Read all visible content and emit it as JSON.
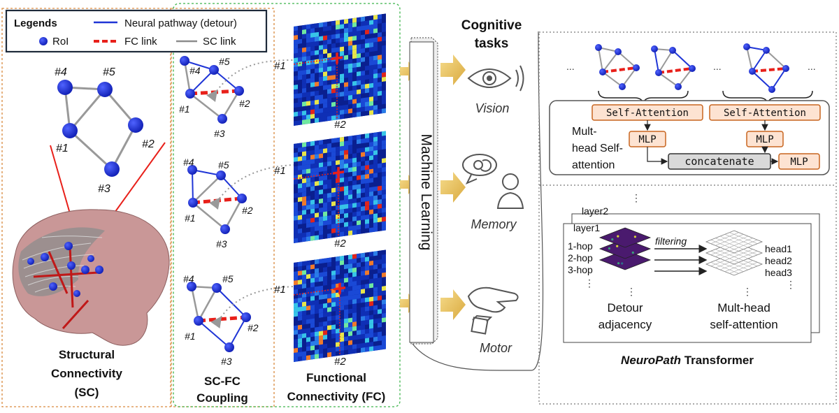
{
  "legend": {
    "title": "Legends",
    "roi": "RoI",
    "neural_pathway": "Neural pathway (detour)",
    "fc_link": "FC link",
    "sc_link": "SC link"
  },
  "nodes": {
    "n1": "#1",
    "n2": "#2",
    "n3": "#3",
    "n4": "#4",
    "n5": "#5"
  },
  "sc_panel": {
    "line1": "Structural",
    "line2": "Connectivity",
    "line3": "(SC)"
  },
  "coupling_panel": {
    "line1": "SC-FC",
    "line2": "Coupling"
  },
  "fc_panel": {
    "line1": "Functional",
    "line2": "Connectivity (FC)"
  },
  "ml": {
    "label": "Machine Learning"
  },
  "tasks": {
    "title_line1": "Cognitive",
    "title_line2": "tasks",
    "vision": "Vision",
    "memory": "Memory",
    "motor": "Motor"
  },
  "attention_box": {
    "self_attention": "Self-Attention",
    "mlp": "MLP",
    "concatenate": "concatenate",
    "label_line1": "Mult-",
    "label_line2": "head Self-",
    "label_line3": "attention",
    "ellipsis": "..."
  },
  "transformer_box": {
    "layer2": "layer2",
    "layer1": "layer1",
    "hops": [
      "1-hop",
      "2-hop",
      "3-hop"
    ],
    "heads": [
      "head1",
      "head2",
      "head3"
    ],
    "filtering": "filtering",
    "detour_line1": "Detour",
    "detour_line2": "adjacency",
    "mha_line1": "Mult-head",
    "mha_line2": "self-attention",
    "dots": "⋮"
  },
  "caption": {
    "italic": "NeuroPath",
    "rest": " Transformer"
  },
  "colors": {
    "node": "#1f2fd6",
    "fc_link": "#e8201a",
    "sc_link": "#8c8c8c",
    "pathway": "#1f35d6",
    "orange_border": "#d9893c",
    "green_border": "#3cb54a",
    "attn_fill": "#fde3d2",
    "attn_border": "#c8651f",
    "arrow_gold": "#e4c16a"
  }
}
